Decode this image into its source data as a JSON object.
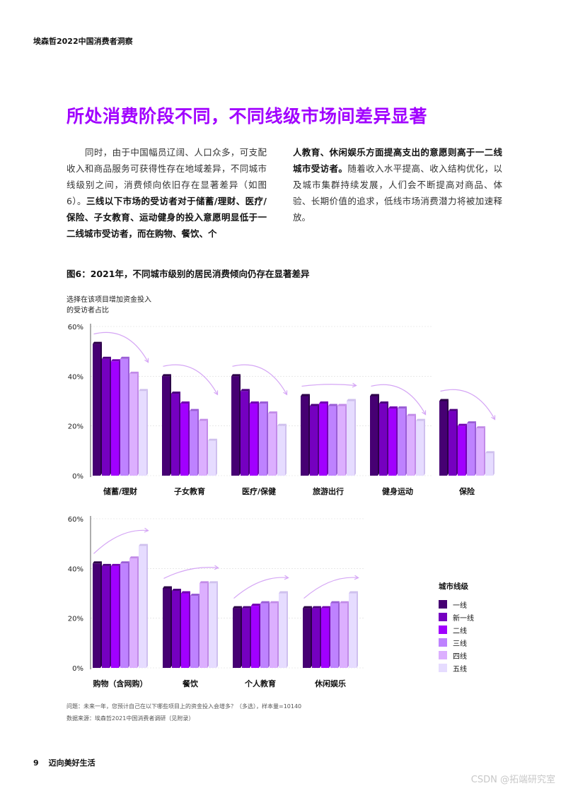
{
  "header": "埃森哲2022中国消费者洞察",
  "title": "所处消费阶段不同，不同线级市场间差异显著",
  "body": {
    "left_p1": "同时，由于中国幅员辽阔、人口众多，可支配收入和商品服务可获得性存在地域差异，不同城市线级别之间，消费倾向依旧存在显著差异（如图6）。",
    "left_p1_bold": "三线以下市场的受访者对于储蓄/理财、医疗/保险、子女教育、运动健身的投入意愿明显低于一二线城市受访者，而在购物、餐饮、个",
    "right_bold": "人教育、休闲娱乐方面提高支出的意愿则高于一二线城市受访者。",
    "right_p": "随着收入水平提高、收入结构优化，以及城市集群持续发展，人们会不断提高对商品、体验、长期价值的追求，低线市场消费潜力将被加速释放。"
  },
  "figure_title": "图6：2021年，不同城市级别的居民消费倾向仍存在显著差异",
  "y_label_line1": "选择在该项目增加资金投入",
  "y_label_line2": "的受访者占比",
  "legend": {
    "title": "城市线级",
    "items": [
      "一线",
      "新一线",
      "二线",
      "三线",
      "四线",
      "五线"
    ]
  },
  "notes": {
    "question": "问题：未来一年，您预计自己在以下哪些项目上的资金投入会增多？（多选），样本量=10140",
    "source": "数据来源：埃森哲2021中国消费者调研（见附录）"
  },
  "footer": {
    "page_number": "9",
    "section": "迈向美好生活"
  },
  "watermark": "CSDN @拓端研究室",
  "colors": [
    "#460073",
    "#7500c0",
    "#a100ff",
    "#be82ff",
    "#dcafff",
    "#e6dcff"
  ],
  "chart_data": [
    {
      "type": "bar",
      "ylim": [
        0,
        60
      ],
      "yticks": [
        "0%",
        "20%",
        "40%",
        "60%"
      ],
      "categories": [
        "储蓄/理财",
        "子女教育",
        "医疗/保健",
        "旅游出行",
        "健身运动",
        "保险"
      ],
      "trend": [
        "down",
        "down",
        "down",
        "up",
        "down",
        "down"
      ],
      "series": [
        {
          "name": "一线",
          "values": [
            53,
            40,
            40,
            32,
            32,
            30
          ]
        },
        {
          "name": "新一线",
          "values": [
            47,
            33,
            34,
            28,
            29,
            26
          ]
        },
        {
          "name": "二线",
          "values": [
            46,
            29,
            29,
            29,
            27,
            20
          ]
        },
        {
          "name": "三线",
          "values": [
            47,
            26,
            29,
            28,
            27,
            21
          ]
        },
        {
          "name": "四线",
          "values": [
            41,
            22,
            25,
            28,
            24,
            19
          ]
        },
        {
          "name": "五线",
          "values": [
            34,
            14,
            20,
            30,
            22,
            9
          ]
        }
      ]
    },
    {
      "type": "bar",
      "ylim": [
        0,
        60
      ],
      "yticks": [
        "0%",
        "20%",
        "40%",
        "60%"
      ],
      "categories": [
        "购物（含网购）",
        "餐饮",
        "个人教育",
        "休闲娱乐"
      ],
      "trend": [
        "up",
        "up",
        "up",
        "up"
      ],
      "series": [
        {
          "name": "一线",
          "values": [
            42,
            32,
            24,
            24
          ]
        },
        {
          "name": "新一线",
          "values": [
            41,
            31,
            24,
            24
          ]
        },
        {
          "name": "二线",
          "values": [
            41,
            30,
            25,
            24
          ]
        },
        {
          "name": "三线",
          "values": [
            42,
            29,
            26,
            26
          ]
        },
        {
          "name": "四线",
          "values": [
            44,
            34,
            26,
            26
          ]
        },
        {
          "name": "五线",
          "values": [
            49,
            34,
            30,
            30
          ]
        }
      ]
    }
  ]
}
